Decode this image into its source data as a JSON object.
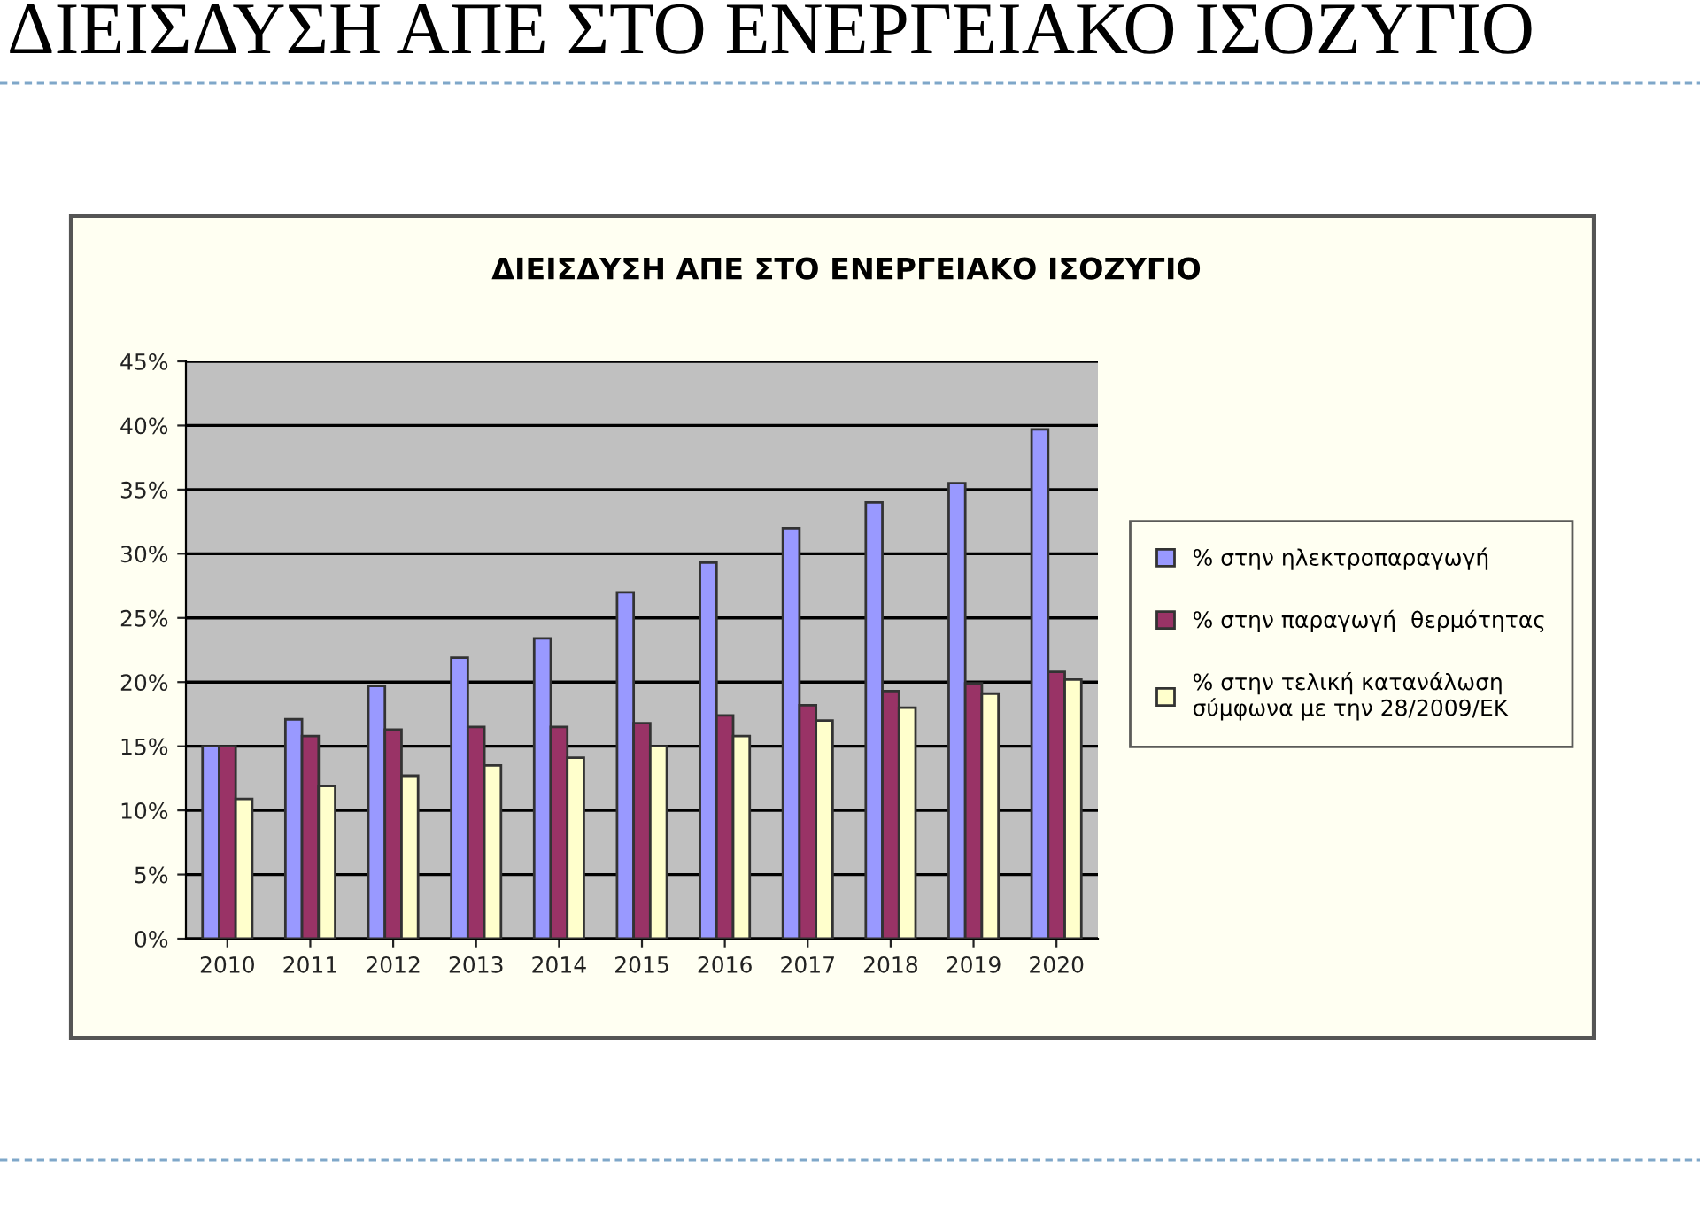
{
  "chart_data": {
    "type": "bar",
    "title": "ΔΙΕΙΣΔΥΣΗ ΑΠΕ ΣΤΟ ΕΝΕΡΓΕΙΑΚΟ ΙΣΟΖΥΓΙΟ",
    "subtitle": "ΔΙΕΙΣΔΥΣΗ ΑΠΕ ΣΤΟ ΕΝΕΡΓΕΙΑΚΟ ΙΣΟΖΥΓΙΟ",
    "categories": [
      "2010",
      "2011",
      "2012",
      "2013",
      "2014",
      "2015",
      "2016",
      "2017",
      "2018",
      "2019",
      "2020"
    ],
    "series": [
      {
        "name": "% στην ηλεκτροπαραγωγή",
        "color": "#9999ff",
        "values": [
          15,
          17.1,
          19.7,
          21.9,
          23.4,
          27.0,
          29.3,
          32.0,
          34.0,
          35.5,
          39.7
        ]
      },
      {
        "name": "% στην παραγωγή  θερμότητας",
        "color": "#993366",
        "values": [
          15,
          15.8,
          16.3,
          16.5,
          16.5,
          16.8,
          17.4,
          18.2,
          19.3,
          19.9,
          20.8
        ]
      },
      {
        "name": "% στην τελική κατανάλωση\nσύμφωνα με την 28/2009/ΕΚ",
        "color": "#ffffcc",
        "values": [
          10.9,
          11.9,
          12.7,
          13.5,
          14.1,
          15.0,
          15.8,
          17.0,
          18.0,
          19.1,
          20.2
        ]
      }
    ],
    "ylim": [
      0,
      45
    ],
    "yticks": [
      {
        "value": 0,
        "label": "0%"
      },
      {
        "value": 5,
        "label": "5%"
      },
      {
        "value": 10,
        "label": "10%"
      },
      {
        "value": 15,
        "label": "15%"
      },
      {
        "value": 20,
        "label": "20%"
      },
      {
        "value": 25,
        "label": "25%"
      },
      {
        "value": 30,
        "label": "30%"
      },
      {
        "value": 35,
        "label": "35%"
      },
      {
        "value": 40,
        "label": "40%"
      },
      {
        "value": 45,
        "label": "45%"
      }
    ],
    "grid": "y",
    "legend": "right"
  }
}
